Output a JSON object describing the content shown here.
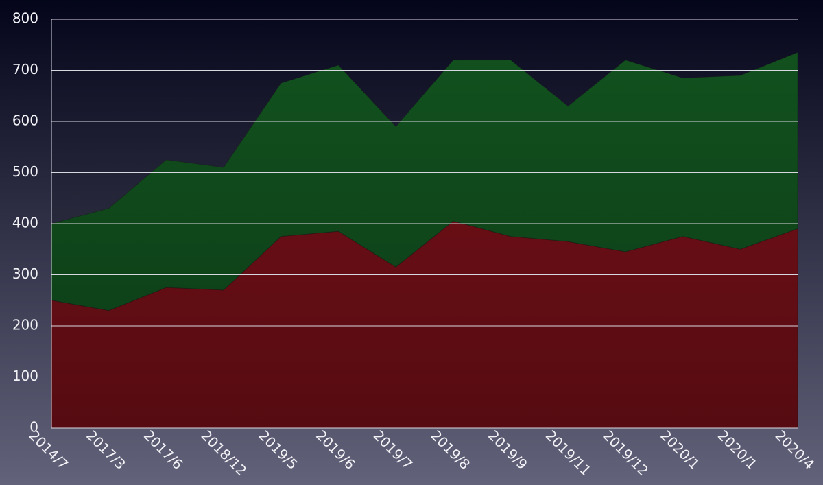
{
  "chart_data": {
    "type": "stacked-area",
    "categories": [
      "2014/7",
      "2017/3",
      "2017/6",
      "2018/12",
      "2019/5",
      "2019/6",
      "2019/7",
      "2019/8",
      "2019/9",
      "2019/11",
      "2019/12",
      "2020/1",
      "2020/1",
      "2020/4"
    ],
    "series": [
      {
        "color": "#7a1019",
        "values": [
          250,
          230,
          275,
          270,
          375,
          385,
          315,
          405,
          375,
          365,
          345,
          375,
          350,
          390
        ]
      },
      {
        "color": "#12531f",
        "values": [
          150,
          200,
          250,
          240,
          300,
          325,
          275,
          315,
          345,
          265,
          375,
          310,
          340,
          345
        ]
      }
    ],
    "ylim": [
      0,
      800
    ],
    "yticks": [
      0,
      100,
      200,
      300,
      400,
      500,
      600,
      700,
      800
    ],
    "grid": true
  }
}
